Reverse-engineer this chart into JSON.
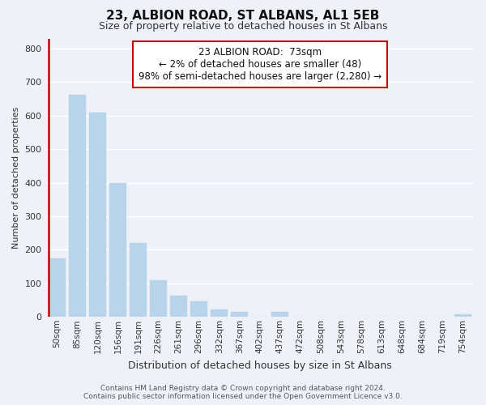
{
  "title": "23, ALBION ROAD, ST ALBANS, AL1 5EB",
  "subtitle": "Size of property relative to detached houses in St Albans",
  "xlabel": "Distribution of detached houses by size in St Albans",
  "ylabel": "Number of detached properties",
  "categories": [
    "50sqm",
    "85sqm",
    "120sqm",
    "156sqm",
    "191sqm",
    "226sqm",
    "261sqm",
    "296sqm",
    "332sqm",
    "367sqm",
    "402sqm",
    "437sqm",
    "472sqm",
    "508sqm",
    "543sqm",
    "578sqm",
    "613sqm",
    "648sqm",
    "684sqm",
    "719sqm",
    "754sqm"
  ],
  "values": [
    175,
    663,
    610,
    400,
    220,
    110,
    63,
    47,
    22,
    14,
    0,
    15,
    0,
    0,
    0,
    0,
    0,
    0,
    0,
    0,
    7
  ],
  "bar_color": "#b8d4ea",
  "highlight_color": "#cc0000",
  "annotation_line1": "23 ALBION ROAD:  73sqm",
  "annotation_line2": "← 2% of detached houses are smaller (48)",
  "annotation_line3": "98% of semi-detached houses are larger (2,280) →",
  "annotation_box_color": "#ffffff",
  "annotation_box_edge": "#cc0000",
  "ylim": [
    0,
    830
  ],
  "footer_line1": "Contains HM Land Registry data © Crown copyright and database right 2024.",
  "footer_line2": "Contains public sector information licensed under the Open Government Licence v3.0.",
  "background_color": "#eef2f8",
  "grid_color": "#ffffff",
  "title_fontsize": 11,
  "subtitle_fontsize": 9,
  "ylabel_fontsize": 8,
  "xlabel_fontsize": 9,
  "tick_fontsize": 7.5,
  "footer_fontsize": 6.5,
  "annotation_fontsize": 8.5
}
